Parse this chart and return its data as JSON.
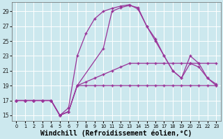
{
  "background_color": "#cce8ee",
  "grid_color": "#ffffff",
  "line_color": "#993399",
  "xlabel": "Windchill (Refroidissement éolien,°C)",
  "xlabel_fontsize": 7.0,
  "ylabel_ticks": [
    15,
    17,
    19,
    21,
    23,
    25,
    27,
    29
  ],
  "xlim": [
    -0.5,
    23.5
  ],
  "ylim": [
    14.2,
    30.2
  ],
  "s1_x": [
    0,
    1,
    2,
    3,
    4,
    5,
    6,
    7,
    8,
    9,
    10,
    11,
    12,
    13,
    14,
    15,
    16,
    17,
    18,
    19,
    20,
    21,
    22,
    23
  ],
  "s1_y": [
    17,
    17,
    17,
    17,
    17,
    15,
    15.5,
    19,
    19,
    19,
    19,
    19,
    19,
    19,
    19,
    19,
    19,
    19,
    19,
    19,
    19,
    19,
    19,
    19
  ],
  "s2_x": [
    0,
    1,
    2,
    3,
    4,
    5,
    6,
    7,
    8,
    9,
    10,
    11,
    12,
    13,
    14,
    15,
    16,
    17,
    18,
    19,
    20,
    21,
    22,
    23
  ],
  "s2_y": [
    17,
    17,
    17,
    17,
    17,
    15,
    15.5,
    19,
    19.5,
    20,
    20.5,
    21,
    21.5,
    22,
    22,
    22,
    22,
    22,
    22,
    22,
    22,
    22,
    22,
    22
  ],
  "s3_x": [
    0,
    1,
    2,
    3,
    4,
    5,
    6,
    7,
    10,
    11,
    12,
    13,
    14,
    15,
    16,
    17,
    18,
    19,
    20,
    21,
    22,
    23
  ],
  "s3_y": [
    17,
    17,
    17,
    17,
    17,
    15,
    15.5,
    19,
    24,
    29,
    29.5,
    29.8,
    29.5,
    27,
    25.3,
    23,
    21,
    20,
    23,
    22,
    20,
    19
  ],
  "s4_x": [
    0,
    1,
    2,
    3,
    4,
    5,
    6,
    7,
    8,
    9,
    10,
    11,
    12,
    13,
    14,
    15,
    16,
    17,
    18,
    19,
    20,
    21,
    22,
    23
  ],
  "s4_y": [
    17,
    17,
    17,
    17,
    17,
    15,
    16,
    23,
    26,
    28,
    29,
    29.4,
    29.7,
    29.9,
    29.3,
    27,
    25,
    23,
    21,
    20,
    22,
    21.5,
    20,
    19.2
  ]
}
